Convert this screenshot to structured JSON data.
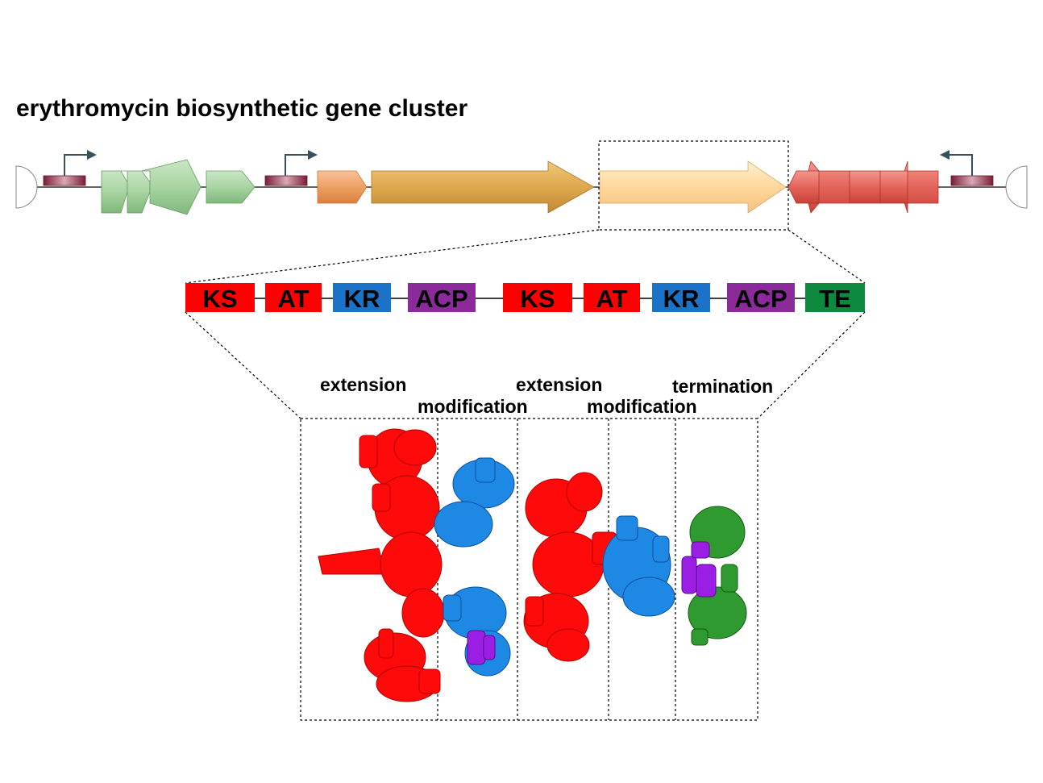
{
  "title": "erythromycin biosynthetic gene cluster",
  "colors": {
    "KS": "#ff0000",
    "AT": "#ff0000",
    "KR": "#1a73c8",
    "ACP": "#8b2a9b",
    "TE": "#0e8a3e",
    "promoter": "#8e2c45",
    "green_genes": "#9fcf9a",
    "orange_gene": "#ee9a5b",
    "tan_gene": "#d9a24a",
    "peach_gene": "#ffd59a",
    "red_genes": "#e1584d"
  },
  "domains": [
    "KS",
    "AT",
    "KR",
    "ACP",
    "KS",
    "AT",
    "KR",
    "ACP",
    "TE"
  ],
  "stages": [
    "extension",
    "modification",
    "extension",
    "modification",
    "termination"
  ]
}
